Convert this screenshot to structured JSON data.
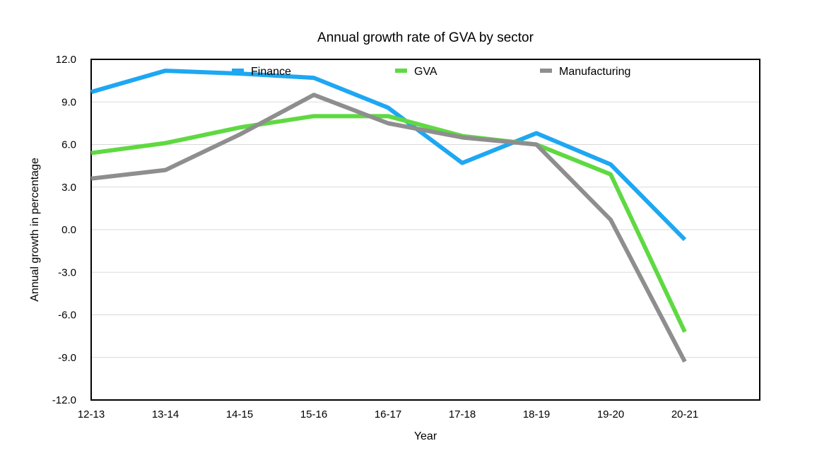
{
  "chart_data": {
    "type": "line",
    "title": "Annual growth rate of GVA by sector",
    "xlabel": "Year",
    "ylabel": "Annual growth in percentage",
    "categories": [
      "12-13",
      "13-14",
      "14-15",
      "15-16",
      "16-17",
      "17-18",
      "18-19",
      "19-20",
      "20-21"
    ],
    "yticks": [
      "12.0",
      "9.0",
      "6.0",
      "3.0",
      "0.0",
      "-3.0",
      "-6.0",
      "-9.0",
      "-12.0"
    ],
    "ylim": [
      -12,
      12
    ],
    "grid": true,
    "legend_position": "top",
    "series": [
      {
        "name": "Finance",
        "color": "#1ea7f2",
        "values": [
          9.7,
          11.2,
          11.0,
          10.7,
          8.6,
          4.7,
          6.8,
          4.6,
          -0.7
        ]
      },
      {
        "name": "GVA",
        "color": "#5fd942",
        "values": [
          5.4,
          6.1,
          7.2,
          8.0,
          8.0,
          6.6,
          6.0,
          3.9,
          -7.2
        ]
      },
      {
        "name": "Manufacturing",
        "color": "#8e8e8e",
        "values": [
          3.6,
          4.2,
          6.7,
          9.5,
          7.5,
          6.5,
          6.0,
          0.7,
          -9.3
        ]
      }
    ]
  }
}
